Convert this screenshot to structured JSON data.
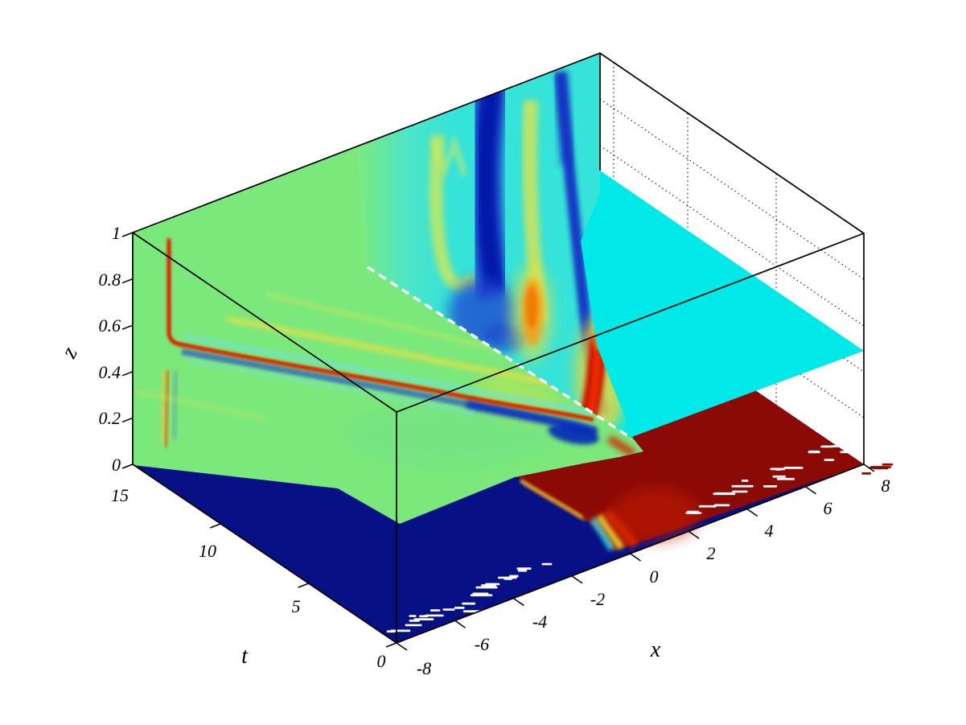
{
  "figure": {
    "kind": "matlab-style 3D slice plot of a scalar field u(x,t,z), jet colormap, no title, no colorbar",
    "axes": {
      "z": {
        "name": "z",
        "range": [
          0,
          1
        ],
        "tick_labels": [
          "1",
          "0.8",
          "0.6",
          "0.4",
          "0.2",
          "0"
        ]
      },
      "t": {
        "name": "t",
        "range": [
          0,
          15
        ],
        "tick_labels": [
          "15",
          "10",
          "5",
          "0"
        ]
      },
      "x": {
        "name": "x",
        "range": [
          -8,
          8
        ],
        "tick_labels": [
          "-8",
          "-6",
          "-4",
          "-2",
          "0",
          "2",
          "4",
          "6",
          "8"
        ]
      }
    },
    "colors": {
      "background": "#ffffff",
      "box_line": "#000000",
      "grid_dot": "#111111",
      "deep_blue": "#071084",
      "dark_red": "#8c0a05",
      "field_green": "#7be87b",
      "plane_cyan": "#00e9e9",
      "bands_cyan": "#36e3d8",
      "trough_blue": "#1636c8",
      "crest_yellow": "#e4e04a",
      "crest_orange": "#f07806",
      "wave_red": "#d82704",
      "dash_white": "#ffffff"
    }
  },
  "chart_data": {
    "type": "heatmap",
    "plot_style": "3d-slice-volume",
    "colormap": "jet",
    "grid": "dotted t/z grid on the right wall (x=8): t gridlines at 5,10,15; z gridlines at 0.2,0.4,0.6,0.8",
    "legend": "none",
    "axes": {
      "x": {
        "label": "x",
        "range": [
          -8,
          8
        ],
        "ticks": [
          -8,
          -6,
          -4,
          -2,
          0,
          2,
          4,
          6,
          8
        ]
      },
      "t": {
        "label": "t",
        "range": [
          0,
          15
        ],
        "ticks": [
          0,
          5,
          10,
          15
        ]
      },
      "z": {
        "label": "z",
        "range": [
          0,
          1
        ],
        "ticks": [
          0,
          0.2,
          0.4,
          0.6,
          0.8,
          1
        ]
      }
    },
    "slices": [
      {
        "name": "bed slice z=0",
        "plane": "z = 0",
        "values": "saturated minimum (dark navy) for x < 0, saturated maximum (dark red) for x > 0; sharp sigmoidal front near x = 0 with a thin cyan/yellow/red transition fringe; white dithering artifacts scattered on both lobes"
      },
      {
        "name": "left wall slice x=-8 (t-z plane)",
        "plane": "x = -8",
        "values": "near-zero green background with nested chevron wave crests: main thin red ridge with vertical arm at t≈13.5 (z≈0.55..1) bending at (t≈13.5, z≈0.55) into an oblique arm running to (t≈0, z≈0.2); blue trough strips inside/below the ridge, yellow halo ridges outside; weaker orange vertical segment below the elbow"
      },
      {
        "name": "mid-depth horizontal slice",
        "plane": "z ≈ 0.5, x > 0",
        "values": "uniform slightly negative field, flat cyan; its left edge against the oblique slice is marked by a white dashed intersection line running from (x≈0, t=15) to (x≈0, t≈0)"
      },
      {
        "name": "moving-front slice (bands surface near x≈0..4)",
        "plane": "follows the front, x ≈ x_front(t)",
        "values": "cyan background; wide dark-blue descending trough around screen-x of x≈1; second narrow dark-blue trough to its right; yellow crest between them; localized orange maximum at z≈0.6 near the front; intense red plume descending to the bed at the lower right, ending in the bed transition fringe"
      }
    ]
  }
}
